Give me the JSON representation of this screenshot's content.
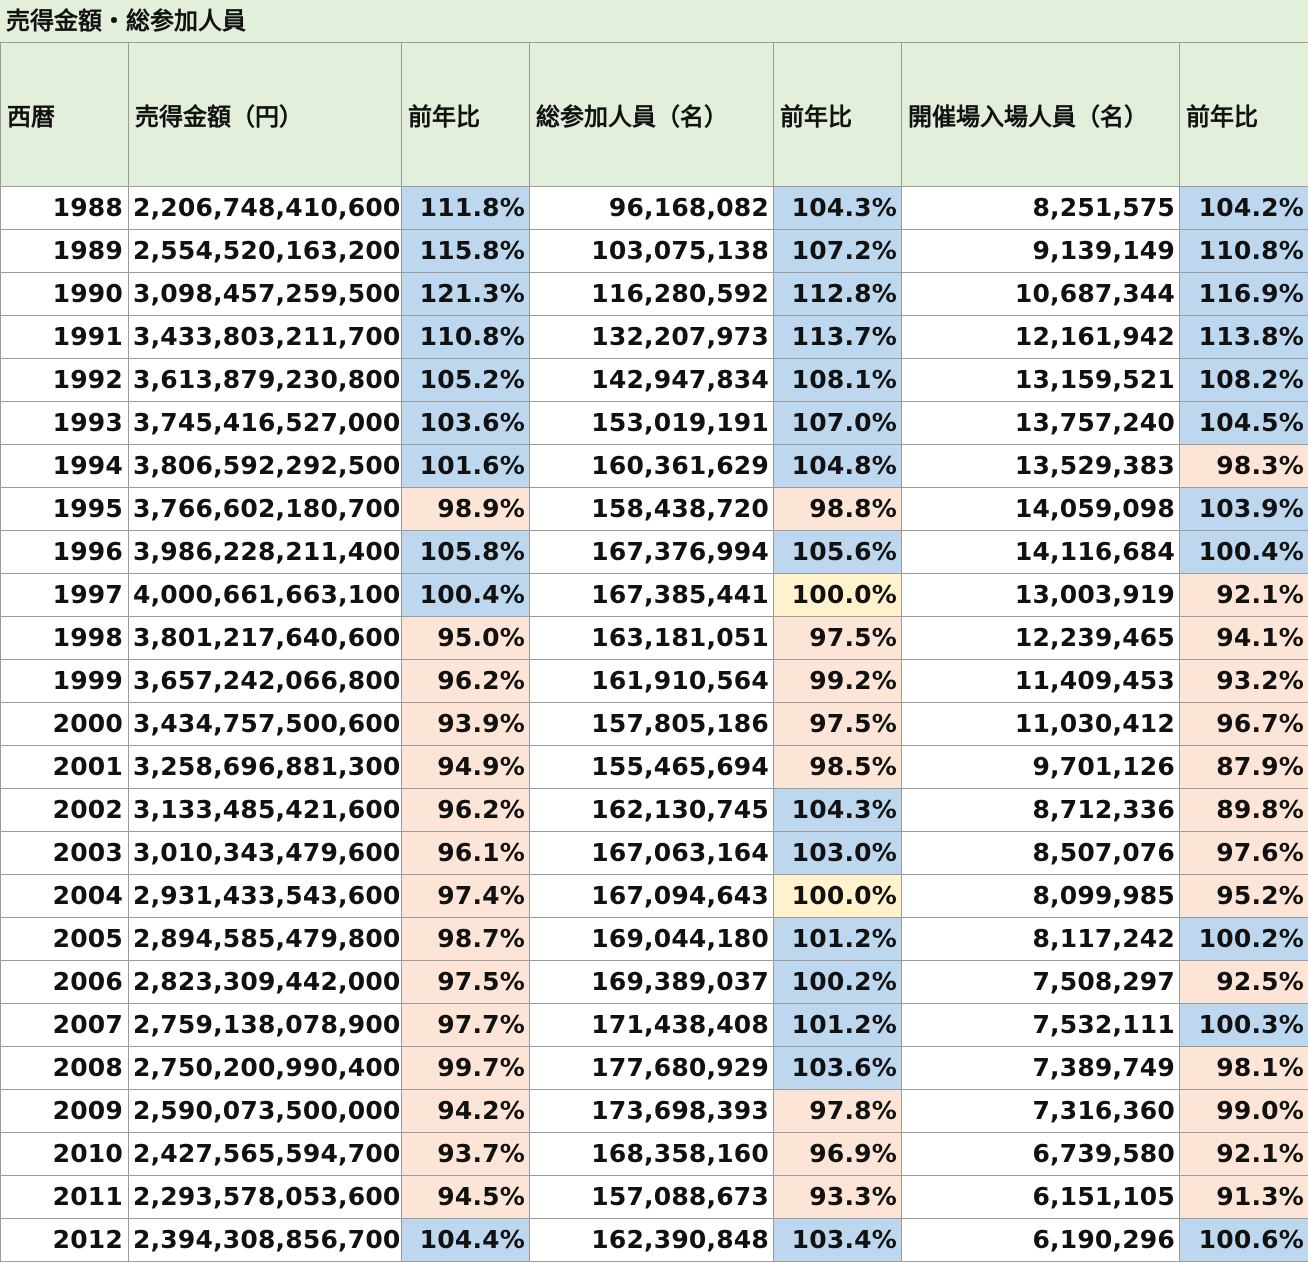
{
  "title": "売得金額・総参加人員",
  "headers": [
    "西暦",
    "売得金額（円）",
    "前年比",
    "総参加人員（名）",
    "前年比",
    "開催場入場人員（名）",
    "前年比"
  ],
  "colors": {
    "increase": "#bdd7ee",
    "decrease": "#fce4d6",
    "unchanged": "#fff2cc",
    "header": "#e2efda"
  },
  "rows": [
    {
      "year": "1988",
      "sales": "2,206,748,410,600",
      "sales_ratio": "111.8%",
      "participants": "96,168,082",
      "participants_ratio": "104.3%",
      "attendance": "8,251,575",
      "attendance_ratio": "104.2%"
    },
    {
      "year": "1989",
      "sales": "2,554,520,163,200",
      "sales_ratio": "115.8%",
      "participants": "103,075,138",
      "participants_ratio": "107.2%",
      "attendance": "9,139,149",
      "attendance_ratio": "110.8%"
    },
    {
      "year": "1990",
      "sales": "3,098,457,259,500",
      "sales_ratio": "121.3%",
      "participants": "116,280,592",
      "participants_ratio": "112.8%",
      "attendance": "10,687,344",
      "attendance_ratio": "116.9%"
    },
    {
      "year": "1991",
      "sales": "3,433,803,211,700",
      "sales_ratio": "110.8%",
      "participants": "132,207,973",
      "participants_ratio": "113.7%",
      "attendance": "12,161,942",
      "attendance_ratio": "113.8%"
    },
    {
      "year": "1992",
      "sales": "3,613,879,230,800",
      "sales_ratio": "105.2%",
      "participants": "142,947,834",
      "participants_ratio": "108.1%",
      "attendance": "13,159,521",
      "attendance_ratio": "108.2%"
    },
    {
      "year": "1993",
      "sales": "3,745,416,527,000",
      "sales_ratio": "103.6%",
      "participants": "153,019,191",
      "participants_ratio": "107.0%",
      "attendance": "13,757,240",
      "attendance_ratio": "104.5%"
    },
    {
      "year": "1994",
      "sales": "3,806,592,292,500",
      "sales_ratio": "101.6%",
      "participants": "160,361,629",
      "participants_ratio": "104.8%",
      "attendance": "13,529,383",
      "attendance_ratio": "98.3%"
    },
    {
      "year": "1995",
      "sales": "3,766,602,180,700",
      "sales_ratio": "98.9%",
      "participants": "158,438,720",
      "participants_ratio": "98.8%",
      "attendance": "14,059,098",
      "attendance_ratio": "103.9%"
    },
    {
      "year": "1996",
      "sales": "3,986,228,211,400",
      "sales_ratio": "105.8%",
      "participants": "167,376,994",
      "participants_ratio": "105.6%",
      "attendance": "14,116,684",
      "attendance_ratio": "100.4%"
    },
    {
      "year": "1997",
      "sales": "4,000,661,663,100",
      "sales_ratio": "100.4%",
      "participants": "167,385,441",
      "participants_ratio": "100.0%",
      "attendance": "13,003,919",
      "attendance_ratio": "92.1%"
    },
    {
      "year": "1998",
      "sales": "3,801,217,640,600",
      "sales_ratio": "95.0%",
      "participants": "163,181,051",
      "participants_ratio": "97.5%",
      "attendance": "12,239,465",
      "attendance_ratio": "94.1%"
    },
    {
      "year": "1999",
      "sales": "3,657,242,066,800",
      "sales_ratio": "96.2%",
      "participants": "161,910,564",
      "participants_ratio": "99.2%",
      "attendance": "11,409,453",
      "attendance_ratio": "93.2%"
    },
    {
      "year": "2000",
      "sales": "3,434,757,500,600",
      "sales_ratio": "93.9%",
      "participants": "157,805,186",
      "participants_ratio": "97.5%",
      "attendance": "11,030,412",
      "attendance_ratio": "96.7%"
    },
    {
      "year": "2001",
      "sales": "3,258,696,881,300",
      "sales_ratio": "94.9%",
      "participants": "155,465,694",
      "participants_ratio": "98.5%",
      "attendance": "9,701,126",
      "attendance_ratio": "87.9%"
    },
    {
      "year": "2002",
      "sales": "3,133,485,421,600",
      "sales_ratio": "96.2%",
      "participants": "162,130,745",
      "participants_ratio": "104.3%",
      "attendance": "8,712,336",
      "attendance_ratio": "89.8%"
    },
    {
      "year": "2003",
      "sales": "3,010,343,479,600",
      "sales_ratio": "96.1%",
      "participants": "167,063,164",
      "participants_ratio": "103.0%",
      "attendance": "8,507,076",
      "attendance_ratio": "97.6%"
    },
    {
      "year": "2004",
      "sales": "2,931,433,543,600",
      "sales_ratio": "97.4%",
      "participants": "167,094,643",
      "participants_ratio": "100.0%",
      "attendance": "8,099,985",
      "attendance_ratio": "95.2%"
    },
    {
      "year": "2005",
      "sales": "2,894,585,479,800",
      "sales_ratio": "98.7%",
      "participants": "169,044,180",
      "participants_ratio": "101.2%",
      "attendance": "8,117,242",
      "attendance_ratio": "100.2%"
    },
    {
      "year": "2006",
      "sales": "2,823,309,442,000",
      "sales_ratio": "97.5%",
      "participants": "169,389,037",
      "participants_ratio": "100.2%",
      "attendance": "7,508,297",
      "attendance_ratio": "92.5%"
    },
    {
      "year": "2007",
      "sales": "2,759,138,078,900",
      "sales_ratio": "97.7%",
      "participants": "171,438,408",
      "participants_ratio": "101.2%",
      "attendance": "7,532,111",
      "attendance_ratio": "100.3%"
    },
    {
      "year": "2008",
      "sales": "2,750,200,990,400",
      "sales_ratio": "99.7%",
      "participants": "177,680,929",
      "participants_ratio": "103.6%",
      "attendance": "7,389,749",
      "attendance_ratio": "98.1%"
    },
    {
      "year": "2009",
      "sales": "2,590,073,500,000",
      "sales_ratio": "94.2%",
      "participants": "173,698,393",
      "participants_ratio": "97.8%",
      "attendance": "7,316,360",
      "attendance_ratio": "99.0%"
    },
    {
      "year": "2010",
      "sales": "2,427,565,594,700",
      "sales_ratio": "93.7%",
      "participants": "168,358,160",
      "participants_ratio": "96.9%",
      "attendance": "6,739,580",
      "attendance_ratio": "92.1%"
    },
    {
      "year": "2011",
      "sales": "2,293,578,053,600",
      "sales_ratio": "94.5%",
      "participants": "157,088,673",
      "participants_ratio": "93.3%",
      "attendance": "6,151,105",
      "attendance_ratio": "91.3%"
    },
    {
      "year": "2012",
      "sales": "2,394,308,856,700",
      "sales_ratio": "104.4%",
      "participants": "162,390,848",
      "participants_ratio": "103.4%",
      "attendance": "6,190,296",
      "attendance_ratio": "100.6%"
    }
  ]
}
